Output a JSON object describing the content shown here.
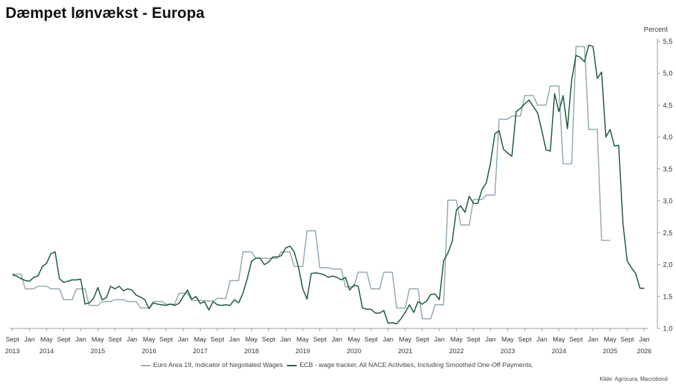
{
  "chart_data": {
    "type": "line",
    "title": "Dæmpet lønvækst - Europa",
    "unit_label": "Percent",
    "source": "Kilde: Agrocura, Macrobond",
    "colors": {
      "series1": "#94aab4",
      "series2": "#1f5a40",
      "axis": "#999999",
      "text": "#333333"
    },
    "ylim": [
      1.0,
      5.5
    ],
    "yticks": [
      "1,0",
      "1,5",
      "2,0",
      "2,5",
      "3,0",
      "3,5",
      "4,0",
      "4,5",
      "5,0",
      "5,5"
    ],
    "ytick_values": [
      1.0,
      1.5,
      2.0,
      2.5,
      3.0,
      3.5,
      4.0,
      4.5,
      5.0,
      5.5
    ],
    "xlim": [
      "2013-09",
      "2026-01"
    ],
    "xticks_months": [
      "2013-09",
      "2014-01",
      "2014-05",
      "2014-09",
      "2015-01",
      "2015-05",
      "2015-09",
      "2016-01",
      "2016-05",
      "2016-09",
      "2017-01",
      "2017-05",
      "2017-09",
      "2018-01",
      "2018-05",
      "2018-09",
      "2019-01",
      "2019-05",
      "2019-09",
      "2020-01",
      "2020-05",
      "2020-09",
      "2021-01",
      "2021-05",
      "2021-09",
      "2022-01",
      "2022-05",
      "2022-09",
      "2023-01",
      "2023-05",
      "2023-09",
      "2024-01",
      "2024-05",
      "2024-09",
      "2025-01",
      "2025-05",
      "2025-09",
      "2026-01"
    ],
    "xticks_labels": [
      "Sept",
      "Jan",
      "May",
      "Sept",
      "Jan",
      "May",
      "Sept",
      "Jan",
      "May",
      "Sept",
      "Jan",
      "May",
      "Sept",
      "Jan",
      "May",
      "Sept",
      "Jan",
      "May",
      "Sept",
      "Jan",
      "May",
      "Sept",
      "Jan",
      "May",
      "Sept",
      "Jan",
      "May",
      "Sept",
      "Jan",
      "May",
      "Sept",
      "Jan",
      "May",
      "Sept",
      "Jan",
      "May",
      "Sept",
      "Jan"
    ],
    "year_labels": [
      {
        "label": "2013",
        "at": "2013-09"
      },
      {
        "label": "2014",
        "at": "2014-05"
      },
      {
        "label": "2015",
        "at": "2015-05"
      },
      {
        "label": "2016",
        "at": "2016-05"
      },
      {
        "label": "2017",
        "at": "2017-05"
      },
      {
        "label": "2018",
        "at": "2018-05"
      },
      {
        "label": "2019",
        "at": "2019-05"
      },
      {
        "label": "2020",
        "at": "2020-05"
      },
      {
        "label": "2021",
        "at": "2021-05"
      },
      {
        "label": "2022",
        "at": "2022-05"
      },
      {
        "label": "2023",
        "at": "2023-05"
      },
      {
        "label": "2024",
        "at": "2024-05"
      },
      {
        "label": "2025",
        "at": "2025-05"
      },
      {
        "label": "2026",
        "at": "2026-01"
      }
    ],
    "series": [
      {
        "name": "Euro Area 19, Indicator of Negotiated Wages",
        "points": [
          [
            "2013-09",
            1.85
          ],
          [
            "2013-11",
            1.85
          ],
          [
            "2013-12",
            1.62
          ],
          [
            "2014-02",
            1.62
          ],
          [
            "2014-03",
            1.66
          ],
          [
            "2014-05",
            1.66
          ],
          [
            "2014-06",
            1.62
          ],
          [
            "2014-08",
            1.62
          ],
          [
            "2014-09",
            1.45
          ],
          [
            "2014-11",
            1.45
          ],
          [
            "2014-12",
            1.62
          ],
          [
            "2015-02",
            1.62
          ],
          [
            "2015-03",
            1.36
          ],
          [
            "2015-05",
            1.36
          ],
          [
            "2015-06",
            1.42
          ],
          [
            "2015-08",
            1.42
          ],
          [
            "2015-09",
            1.45
          ],
          [
            "2015-11",
            1.45
          ],
          [
            "2015-12",
            1.42
          ],
          [
            "2016-02",
            1.42
          ],
          [
            "2016-03",
            1.32
          ],
          [
            "2016-05",
            1.32
          ],
          [
            "2016-06",
            1.42
          ],
          [
            "2016-08",
            1.42
          ],
          [
            "2016-09",
            1.38
          ],
          [
            "2016-11",
            1.38
          ],
          [
            "2016-12",
            1.55
          ],
          [
            "2017-02",
            1.55
          ],
          [
            "2017-03",
            1.44
          ],
          [
            "2017-05",
            1.44
          ],
          [
            "2017-06",
            1.43
          ],
          [
            "2017-08",
            1.43
          ],
          [
            "2017-09",
            1.47
          ],
          [
            "2017-11",
            1.47
          ],
          [
            "2017-12",
            1.75
          ],
          [
            "2018-02",
            1.75
          ],
          [
            "2018-03",
            2.2
          ],
          [
            "2018-05",
            2.2
          ],
          [
            "2018-06",
            2.1
          ],
          [
            "2018-08",
            2.1
          ],
          [
            "2018-09",
            2.1
          ],
          [
            "2018-11",
            2.1
          ],
          [
            "2018-12",
            2.2
          ],
          [
            "2019-02",
            2.2
          ],
          [
            "2019-03",
            1.97
          ],
          [
            "2019-05",
            1.97
          ],
          [
            "2019-06",
            2.53
          ],
          [
            "2019-08",
            2.53
          ],
          [
            "2019-09",
            1.95
          ],
          [
            "2019-11",
            1.95
          ],
          [
            "2019-12",
            1.93
          ],
          [
            "2020-02",
            1.93
          ],
          [
            "2020-03",
            1.65
          ],
          [
            "2020-05",
            1.65
          ],
          [
            "2020-06",
            1.88
          ],
          [
            "2020-08",
            1.88
          ],
          [
            "2020-09",
            1.62
          ],
          [
            "2020-11",
            1.62
          ],
          [
            "2020-12",
            1.88
          ],
          [
            "2021-02",
            1.88
          ],
          [
            "2021-03",
            1.32
          ],
          [
            "2021-05",
            1.32
          ],
          [
            "2021-06",
            1.62
          ],
          [
            "2021-08",
            1.62
          ],
          [
            "2021-09",
            1.15
          ],
          [
            "2021-11",
            1.15
          ],
          [
            "2021-12",
            1.37
          ],
          [
            "2022-02",
            1.37
          ],
          [
            "2022-03",
            3.01
          ],
          [
            "2022-05",
            3.01
          ],
          [
            "2022-06",
            2.62
          ],
          [
            "2022-08",
            2.62
          ],
          [
            "2022-09",
            3.02
          ],
          [
            "2022-11",
            3.02
          ],
          [
            "2022-12",
            3.09
          ],
          [
            "2023-02",
            3.09
          ],
          [
            "2023-03",
            4.28
          ],
          [
            "2023-05",
            4.28
          ],
          [
            "2023-06",
            4.33
          ],
          [
            "2023-08",
            4.33
          ],
          [
            "2023-09",
            4.65
          ],
          [
            "2023-11",
            4.65
          ],
          [
            "2023-12",
            4.5
          ],
          [
            "2024-02",
            4.5
          ],
          [
            "2024-03",
            4.8
          ],
          [
            "2024-05",
            4.8
          ],
          [
            "2024-06",
            3.58
          ],
          [
            "2024-08",
            3.58
          ],
          [
            "2024-09",
            5.42
          ],
          [
            "2024-11",
            5.42
          ],
          [
            "2024-12",
            4.12
          ],
          [
            "2025-02",
            4.12
          ],
          [
            "2025-03",
            2.38
          ],
          [
            "2025-05",
            2.38
          ]
        ]
      },
      {
        "name": "ECB - wage tracker, All NACE Activities, Including Smoothed One-Off Payments,",
        "points": [
          [
            "2013-09",
            1.84
          ],
          [
            "2013-10",
            1.82
          ],
          [
            "2013-11",
            1.78
          ],
          [
            "2013-12",
            1.75
          ],
          [
            "2014-01",
            1.74
          ],
          [
            "2014-02",
            1.8
          ],
          [
            "2014-03",
            1.82
          ],
          [
            "2014-04",
            1.97
          ],
          [
            "2014-05",
            2.02
          ],
          [
            "2014-06",
            2.17
          ],
          [
            "2014-07",
            2.2
          ],
          [
            "2014-08",
            1.78
          ],
          [
            "2014-09",
            1.72
          ],
          [
            "2014-10",
            1.74
          ],
          [
            "2014-11",
            1.76
          ],
          [
            "2014-12",
            1.76
          ],
          [
            "2015-01",
            1.77
          ],
          [
            "2015-02",
            1.38
          ],
          [
            "2015-03",
            1.4
          ],
          [
            "2015-04",
            1.47
          ],
          [
            "2015-05",
            1.64
          ],
          [
            "2015-06",
            1.45
          ],
          [
            "2015-07",
            1.48
          ],
          [
            "2015-08",
            1.66
          ],
          [
            "2015-09",
            1.62
          ],
          [
            "2015-10",
            1.66
          ],
          [
            "2015-11",
            1.59
          ],
          [
            "2015-12",
            1.62
          ],
          [
            "2016-01",
            1.6
          ],
          [
            "2016-02",
            1.52
          ],
          [
            "2016-03",
            1.49
          ],
          [
            "2016-04",
            1.45
          ],
          [
            "2016-05",
            1.31
          ],
          [
            "2016-06",
            1.4
          ],
          [
            "2016-07",
            1.38
          ],
          [
            "2016-08",
            1.37
          ],
          [
            "2016-09",
            1.36
          ],
          [
            "2016-10",
            1.38
          ],
          [
            "2016-11",
            1.36
          ],
          [
            "2016-12",
            1.39
          ],
          [
            "2017-01",
            1.5
          ],
          [
            "2017-02",
            1.6
          ],
          [
            "2017-03",
            1.46
          ],
          [
            "2017-04",
            1.5
          ],
          [
            "2017-05",
            1.39
          ],
          [
            "2017-06",
            1.42
          ],
          [
            "2017-07",
            1.29
          ],
          [
            "2017-08",
            1.42
          ],
          [
            "2017-09",
            1.37
          ],
          [
            "2017-10",
            1.36
          ],
          [
            "2017-11",
            1.37
          ],
          [
            "2017-12",
            1.36
          ],
          [
            "2018-01",
            1.45
          ],
          [
            "2018-02",
            1.4
          ],
          [
            "2018-03",
            1.55
          ],
          [
            "2018-04",
            1.78
          ],
          [
            "2018-05",
            2.05
          ],
          [
            "2018-06",
            2.1
          ],
          [
            "2018-07",
            2.1
          ],
          [
            "2018-08",
            2.0
          ],
          [
            "2018-09",
            2.04
          ],
          [
            "2018-10",
            2.12
          ],
          [
            "2018-11",
            2.12
          ],
          [
            "2018-12",
            2.14
          ],
          [
            "2019-01",
            2.26
          ],
          [
            "2019-02",
            2.29
          ],
          [
            "2019-03",
            2.2
          ],
          [
            "2019-04",
            1.96
          ],
          [
            "2019-05",
            1.62
          ],
          [
            "2019-06",
            1.46
          ],
          [
            "2019-07",
            1.86
          ],
          [
            "2019-08",
            1.87
          ],
          [
            "2019-09",
            1.86
          ],
          [
            "2019-10",
            1.84
          ],
          [
            "2019-11",
            1.8
          ],
          [
            "2019-12",
            1.82
          ],
          [
            "2020-01",
            1.8
          ],
          [
            "2020-02",
            1.76
          ],
          [
            "2020-03",
            1.8
          ],
          [
            "2020-04",
            1.6
          ],
          [
            "2020-05",
            1.68
          ],
          [
            "2020-06",
            1.66
          ],
          [
            "2020-07",
            1.32
          ],
          [
            "2020-08",
            1.3
          ],
          [
            "2020-09",
            1.3
          ],
          [
            "2020-10",
            1.24
          ],
          [
            "2020-11",
            1.24
          ],
          [
            "2020-12",
            1.28
          ],
          [
            "2021-01",
            1.08
          ],
          [
            "2021-02",
            1.09
          ],
          [
            "2021-03",
            1.07
          ],
          [
            "2021-04",
            1.15
          ],
          [
            "2021-05",
            1.25
          ],
          [
            "2021-06",
            1.37
          ],
          [
            "2021-07",
            1.25
          ],
          [
            "2021-08",
            1.42
          ],
          [
            "2021-09",
            1.38
          ],
          [
            "2021-10",
            1.43
          ],
          [
            "2021-11",
            1.53
          ],
          [
            "2021-12",
            1.54
          ],
          [
            "2022-01",
            1.45
          ],
          [
            "2022-02",
            2.06
          ],
          [
            "2022-03",
            2.18
          ],
          [
            "2022-04",
            2.36
          ],
          [
            "2022-05",
            2.86
          ],
          [
            "2022-06",
            2.92
          ],
          [
            "2022-07",
            2.82
          ],
          [
            "2022-08",
            3.07
          ],
          [
            "2022-09",
            2.96
          ],
          [
            "2022-10",
            2.96
          ],
          [
            "2022-11",
            3.18
          ],
          [
            "2022-12",
            3.28
          ],
          [
            "2023-01",
            3.6
          ],
          [
            "2023-02",
            4.05
          ],
          [
            "2023-03",
            4.1
          ],
          [
            "2023-04",
            3.81
          ],
          [
            "2023-05",
            3.75
          ],
          [
            "2023-06",
            3.7
          ],
          [
            "2023-07",
            4.4
          ],
          [
            "2023-08",
            4.45
          ],
          [
            "2023-09",
            4.52
          ],
          [
            "2023-10",
            4.58
          ],
          [
            "2023-11",
            4.48
          ],
          [
            "2023-12",
            4.38
          ],
          [
            "2024-01",
            4.1
          ],
          [
            "2024-02",
            3.8
          ],
          [
            "2024-03",
            3.78
          ],
          [
            "2024-04",
            4.68
          ],
          [
            "2024-05",
            4.4
          ],
          [
            "2024-06",
            4.65
          ],
          [
            "2024-07",
            4.13
          ],
          [
            "2024-08",
            4.9
          ],
          [
            "2024-09",
            5.28
          ],
          [
            "2024-10",
            5.25
          ],
          [
            "2024-11",
            5.18
          ],
          [
            "2024-12",
            5.44
          ],
          [
            "2025-01",
            5.42
          ],
          [
            "2025-02",
            4.92
          ],
          [
            "2025-03",
            5.02
          ],
          [
            "2025-04",
            4.0
          ],
          [
            "2025-05",
            4.12
          ],
          [
            "2025-06",
            3.86
          ],
          [
            "2025-07",
            3.87
          ],
          [
            "2025-08",
            2.65
          ],
          [
            "2025-09",
            2.06
          ],
          [
            "2025-10",
            1.95
          ],
          [
            "2025-11",
            1.86
          ],
          [
            "2025-12",
            1.63
          ],
          [
            "2026-01",
            1.63
          ]
        ]
      }
    ]
  }
}
